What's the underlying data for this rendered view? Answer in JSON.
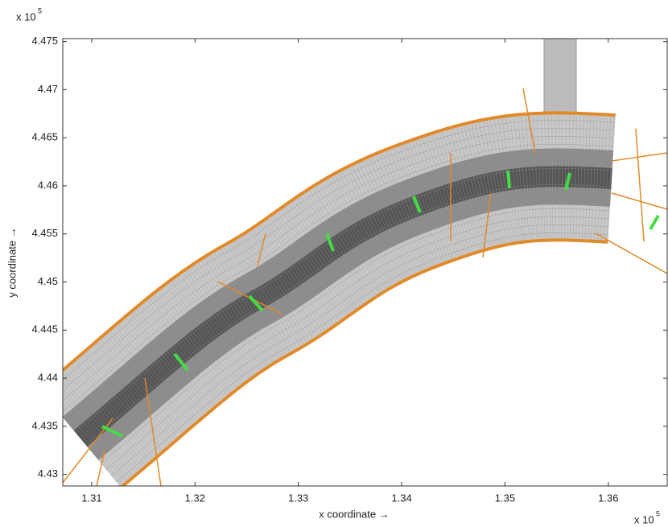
{
  "chart_data": {
    "type": "mesh",
    "xlabel": "x coordinate →",
    "ylabel": "y coordinate →",
    "x_exponent": {
      "base": "x 10",
      "power": "5"
    },
    "y_exponent": {
      "base": "x 10",
      "power": "5"
    },
    "xlim": [
      1.3072,
      1.3657
    ],
    "ylim": [
      4.4288,
      4.4753
    ],
    "xticks": [
      1.31,
      1.32,
      1.33,
      1.34,
      1.35,
      1.36
    ],
    "yticks": [
      4.43,
      4.435,
      4.44,
      4.445,
      4.45,
      4.455,
      4.46,
      4.465,
      4.47,
      4.475
    ]
  }
}
